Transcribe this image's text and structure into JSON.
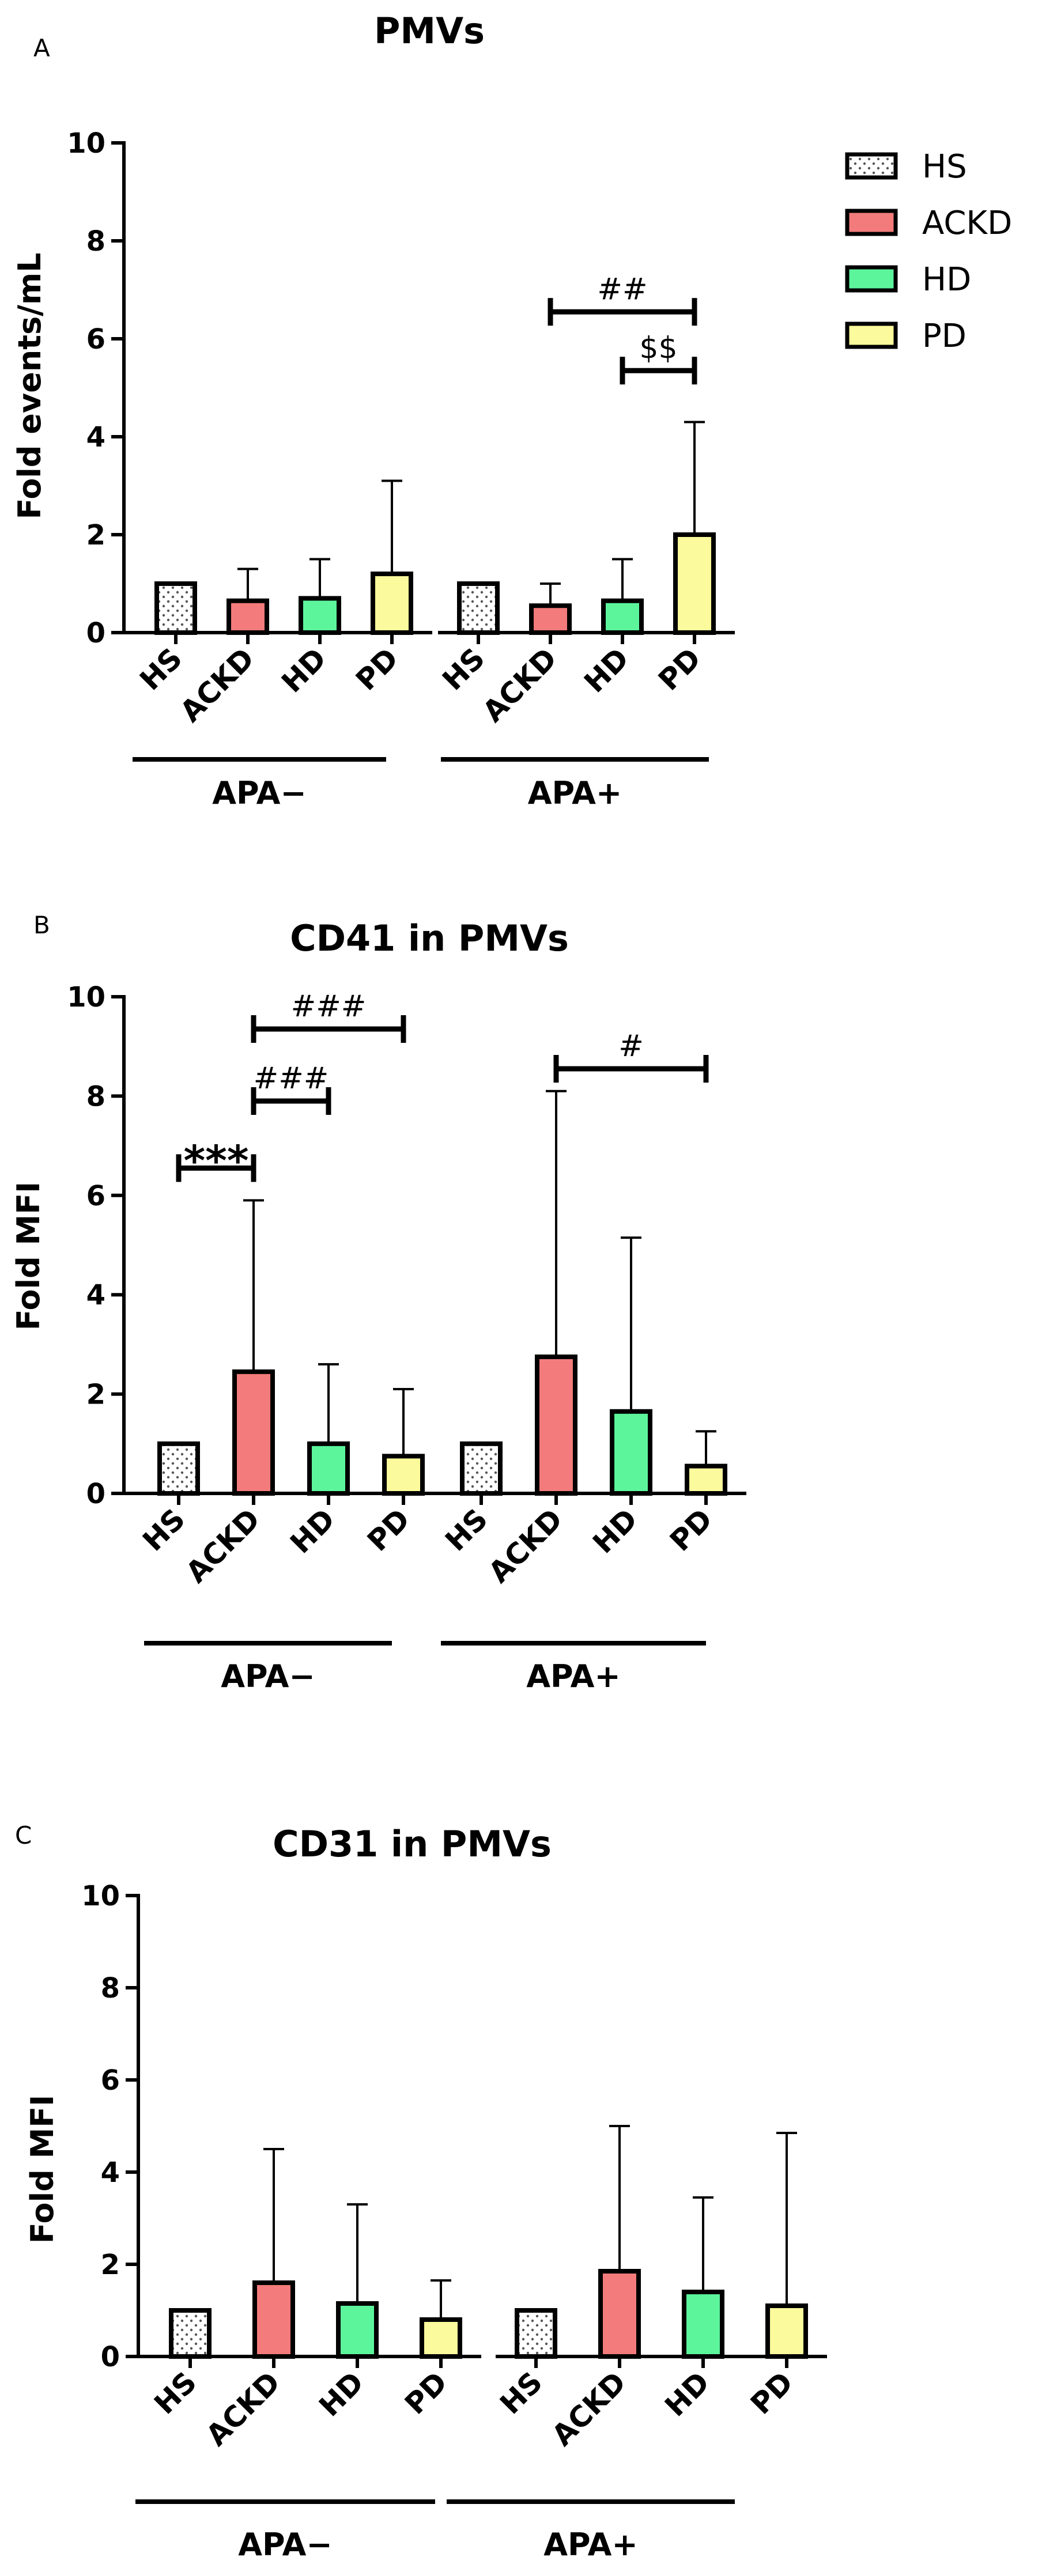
{
  "colors": {
    "HS": "#ffffff",
    "ACKD": "#f37b7b",
    "HD": "#5cf59c",
    "PD": "#fbfa9c",
    "axis": "#000000"
  },
  "legend": {
    "items": [
      {
        "label": "HS",
        "color": "#ffffff",
        "pattern": "dots"
      },
      {
        "label": "ACKD",
        "color": "#f37b7b",
        "pattern": "none"
      },
      {
        "label": "HD",
        "color": "#5cf59c",
        "pattern": "none"
      },
      {
        "label": "PD",
        "color": "#fbfa9c",
        "pattern": "none"
      }
    ]
  },
  "chart_data": [
    {
      "panel_letter": "A",
      "type": "bar",
      "title": "PMVs",
      "ylabel": "Fold events/mL",
      "ylim": [
        0,
        10
      ],
      "yticks": [
        "0",
        "2",
        "4",
        "6",
        "8",
        "10"
      ],
      "categories": [
        "HS",
        "ACKD",
        "HD",
        "PD"
      ],
      "groups": [
        {
          "name": "APA−",
          "values": [
            1.0,
            0.65,
            0.7,
            1.2
          ],
          "errors": [
            1.0,
            1.3,
            1.5,
            3.1
          ]
        },
        {
          "name": "APA+",
          "values": [
            1.0,
            0.55,
            0.65,
            2.0
          ],
          "errors": [
            1.0,
            1.0,
            1.5,
            4.3
          ]
        }
      ],
      "significance": [
        {
          "label": "##",
          "group": 1,
          "from": 1,
          "to": 3,
          "y": 6.55,
          "style": "text"
        },
        {
          "label": "$$",
          "group": 1,
          "from": 2,
          "to": 3,
          "y": 5.35,
          "style": "text"
        }
      ]
    },
    {
      "panel_letter": "B",
      "type": "bar",
      "title": "CD41 in PMVs",
      "ylabel": "Fold MFI",
      "ylim": [
        0,
        10
      ],
      "yticks": [
        "0",
        "2",
        "4",
        "6",
        "8",
        "10"
      ],
      "categories": [
        "HS",
        "ACKD",
        "HD",
        "PD"
      ],
      "groups": [
        {
          "name": "APA−",
          "values": [
            1.0,
            2.45,
            1.0,
            0.75
          ],
          "errors": [
            1.0,
            5.9,
            2.6,
            2.1
          ]
        },
        {
          "name": "APA+",
          "values": [
            1.0,
            2.75,
            1.65,
            0.55
          ],
          "errors": [
            1.0,
            8.1,
            5.15,
            1.25
          ]
        }
      ],
      "significance": [
        {
          "label": "###",
          "group": 0,
          "from": 1,
          "to": 3,
          "y": 9.35,
          "style": "text"
        },
        {
          "label": "###",
          "group": 0,
          "from": 1,
          "to": 2,
          "y": 7.9,
          "style": "text"
        },
        {
          "label": "***",
          "group": 0,
          "from": 0,
          "to": 1,
          "y": 6.55,
          "style": "star"
        },
        {
          "label": "#",
          "group": 1,
          "from": 1,
          "to": 3,
          "y": 8.55,
          "style": "text"
        }
      ]
    },
    {
      "panel_letter": "C",
      "type": "bar",
      "title": "CD31 in PMVs",
      "ylabel": "Fold MFI",
      "ylim": [
        0,
        10
      ],
      "yticks": [
        "0",
        "2",
        "4",
        "6",
        "8",
        "10"
      ],
      "categories": [
        "HS",
        "ACKD",
        "HD",
        "PD"
      ],
      "groups": [
        {
          "name": "APA−",
          "values": [
            1.0,
            1.6,
            1.15,
            0.8
          ],
          "errors": [
            1.0,
            4.5,
            3.3,
            1.65
          ]
        },
        {
          "name": "APA+",
          "values": [
            1.0,
            1.85,
            1.4,
            1.1
          ],
          "errors": [
            1.0,
            5.0,
            3.45,
            4.85
          ]
        }
      ],
      "significance": []
    }
  ]
}
